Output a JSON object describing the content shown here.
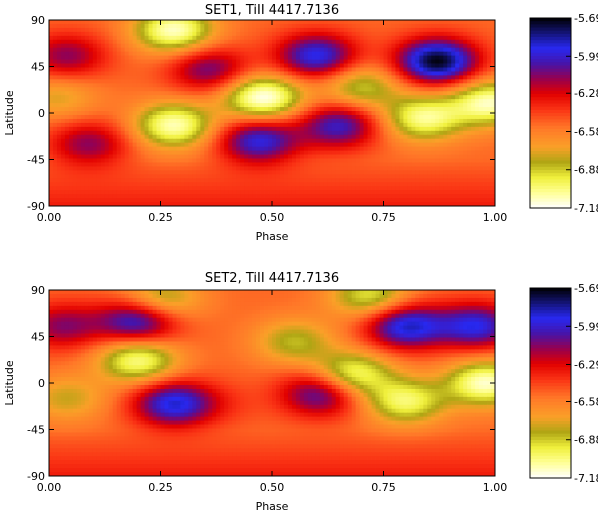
{
  "chart_data": [
    {
      "type": "heatmap",
      "title": "SET1, TiII 4417.7136",
      "xlabel": "Phase",
      "ylabel": "Latitude",
      "xlim": [
        0.0,
        1.0
      ],
      "ylim": [
        -90,
        90
      ],
      "x_ticks": [
        "0.00",
        "0.25",
        "0.50",
        "0.75",
        "1.00"
      ],
      "y_ticks": [
        "90",
        "45",
        "0",
        "-45",
        "-90"
      ],
      "colorbar": {
        "range": [
          -7.18,
          -5.69
        ],
        "tick_labels": [
          "-5.69",
          "-5.99",
          "-6.28",
          "-6.58",
          "-6.88",
          "-7.18"
        ]
      },
      "background_level": -6.52,
      "south_level": -6.35,
      "features": [
        {
          "x": 0.87,
          "y": 50,
          "level": -5.7
        },
        {
          "x": 0.6,
          "y": 55,
          "level": -5.92
        },
        {
          "x": 0.47,
          "y": -27,
          "level": -5.95
        },
        {
          "x": 0.65,
          "y": -12,
          "level": -6.0
        },
        {
          "x": 0.36,
          "y": 42,
          "level": -6.1
        },
        {
          "x": 0.04,
          "y": 55,
          "level": -6.15
        },
        {
          "x": 0.09,
          "y": -30,
          "level": -6.15
        },
        {
          "x": 0.28,
          "y": 80,
          "level": -7.12
        },
        {
          "x": 0.48,
          "y": 15,
          "level": -7.18
        },
        {
          "x": 0.28,
          "y": -12,
          "level": -7.1
        },
        {
          "x": 0.7,
          "y": 25,
          "level": -6.9
        },
        {
          "x": 0.84,
          "y": -5,
          "level": -7.05
        },
        {
          "x": 0.99,
          "y": 10,
          "level": -7.1
        },
        {
          "x": 0.02,
          "y": 15,
          "level": -6.75
        }
      ]
    },
    {
      "type": "heatmap",
      "title": "SET2, TiII 4417.7136",
      "xlabel": "Phase",
      "ylabel": "Latitude",
      "xlim": [
        0.0,
        1.0
      ],
      "ylim": [
        -90,
        90
      ],
      "x_ticks": [
        "0.00",
        "0.25",
        "0.50",
        "0.75",
        "1.00"
      ],
      "y_ticks": [
        "90",
        "45",
        "0",
        "-45",
        "-90"
      ],
      "colorbar": {
        "range": [
          -7.18,
          -5.69
        ],
        "tick_labels": [
          "-5.69",
          "-5.99",
          "-6.29",
          "-6.58",
          "-6.88",
          "-7.18"
        ]
      },
      "background_level": -6.52,
      "south_level": -6.35,
      "features": [
        {
          "x": 0.2,
          "y": 60,
          "level": -5.92
        },
        {
          "x": 0.8,
          "y": 55,
          "level": -5.88
        },
        {
          "x": 0.96,
          "y": 55,
          "level": -5.95
        },
        {
          "x": 0.28,
          "y": -20,
          "level": -5.9
        },
        {
          "x": 0.61,
          "y": -10,
          "level": -6.0
        },
        {
          "x": 0.03,
          "y": 55,
          "level": -6.15
        },
        {
          "x": 0.25,
          "y": 80,
          "level": -6.9
        },
        {
          "x": 0.72,
          "y": 84,
          "level": -6.95
        },
        {
          "x": 0.2,
          "y": 22,
          "level": -7.05
        },
        {
          "x": 0.55,
          "y": 40,
          "level": -6.85
        },
        {
          "x": 0.68,
          "y": 8,
          "level": -7.05
        },
        {
          "x": 0.8,
          "y": -18,
          "level": -7.0
        },
        {
          "x": 0.98,
          "y": 0,
          "level": -7.12
        },
        {
          "x": 0.04,
          "y": -15,
          "level": -6.78
        },
        {
          "x": 0.4,
          "y": -20,
          "level": -6.45
        }
      ]
    }
  ]
}
